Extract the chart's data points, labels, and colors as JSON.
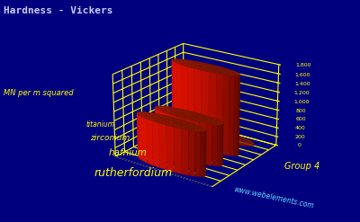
{
  "title": "Hardness - Vickers",
  "ylabel": "MN per m squared",
  "group_label": "Group 4",
  "watermark": "www.webelements.com",
  "elements": [
    "titanium",
    "zirconium",
    "hafnium",
    "rutherfordium"
  ],
  "values": [
    970,
    903,
    1760,
    30
  ],
  "bar_color": "#dd1100",
  "background_color": "#00007f",
  "grid_color": "#ffff00",
  "title_color": "#ccccff",
  "label_color": "#ffff00",
  "tick_color": "#ffff00",
  "watermark_color": "#66ddff",
  "yticks": [
    0,
    200,
    400,
    600,
    800,
    1000,
    1200,
    1400,
    1600,
    1800
  ],
  "ylim": [
    0,
    1800
  ],
  "elev": 22,
  "azim": -55
}
